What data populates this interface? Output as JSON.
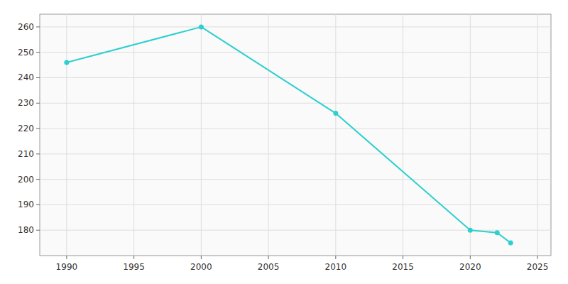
{
  "chart_data": {
    "type": "line",
    "x": [
      1990,
      2000,
      2010,
      2020,
      2022,
      2023
    ],
    "values": [
      246,
      260,
      226,
      180,
      179,
      175
    ],
    "color": "#2ECFCF",
    "marker": "circle",
    "xlim": [
      1988,
      2026
    ],
    "ylim": [
      170,
      265
    ],
    "xticks": [
      1990,
      1995,
      2000,
      2005,
      2010,
      2015,
      2020,
      2025
    ],
    "yticks": [
      180,
      190,
      200,
      210,
      220,
      230,
      240,
      250,
      260
    ],
    "grid": true
  }
}
